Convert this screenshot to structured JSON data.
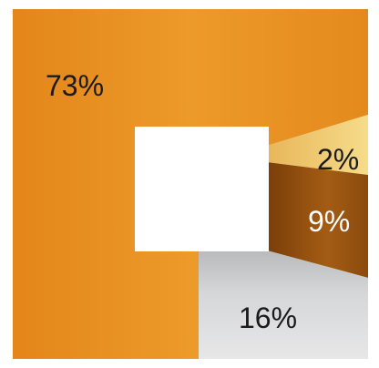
{
  "chart_data": {
    "type": "pie",
    "slices": [
      {
        "label": "73%",
        "value": 73,
        "color": "#e8901f"
      },
      {
        "label": "2%",
        "value": 2,
        "color": "#f1c96a"
      },
      {
        "label": "9%",
        "value": 9,
        "color": "#9a5410"
      },
      {
        "label": "16%",
        "value": 16,
        "color": "#c8c9cb"
      }
    ]
  }
}
